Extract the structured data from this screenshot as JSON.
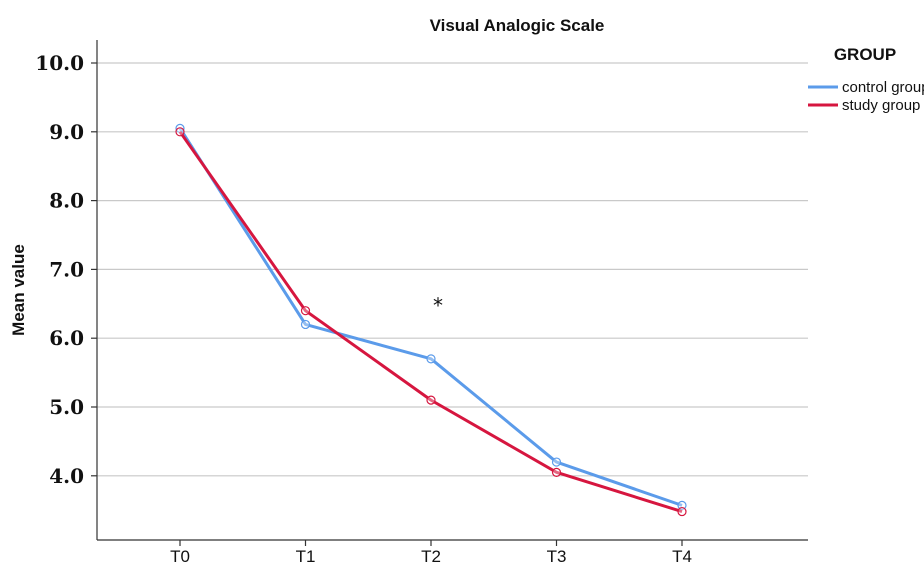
{
  "chart_data": {
    "type": "line",
    "title": "Visual Analogic Scale",
    "xlabel": "",
    "ylabel": "Mean value",
    "categories": [
      "T0",
      "T1",
      "T2",
      "T3",
      "T4"
    ],
    "y_ticks": [
      "10.0",
      "9.0",
      "8.0",
      "7.0",
      "6.0",
      "5.0",
      "4.0"
    ],
    "ylim": [
      3.0,
      10.3
    ],
    "grid": true,
    "legend": {
      "title": "GROUP",
      "placement": "top-right"
    },
    "series": [
      {
        "name": "control group",
        "color": "#5b9bea",
        "values": [
          9.05,
          6.2,
          5.7,
          4.2,
          3.57
        ]
      },
      {
        "name": "study group",
        "color": "#d6163f",
        "values": [
          9.0,
          6.4,
          5.1,
          4.05,
          3.48
        ]
      }
    ],
    "annotations": [
      {
        "text": "*",
        "x": "T2",
        "y": 6.55
      }
    ]
  }
}
